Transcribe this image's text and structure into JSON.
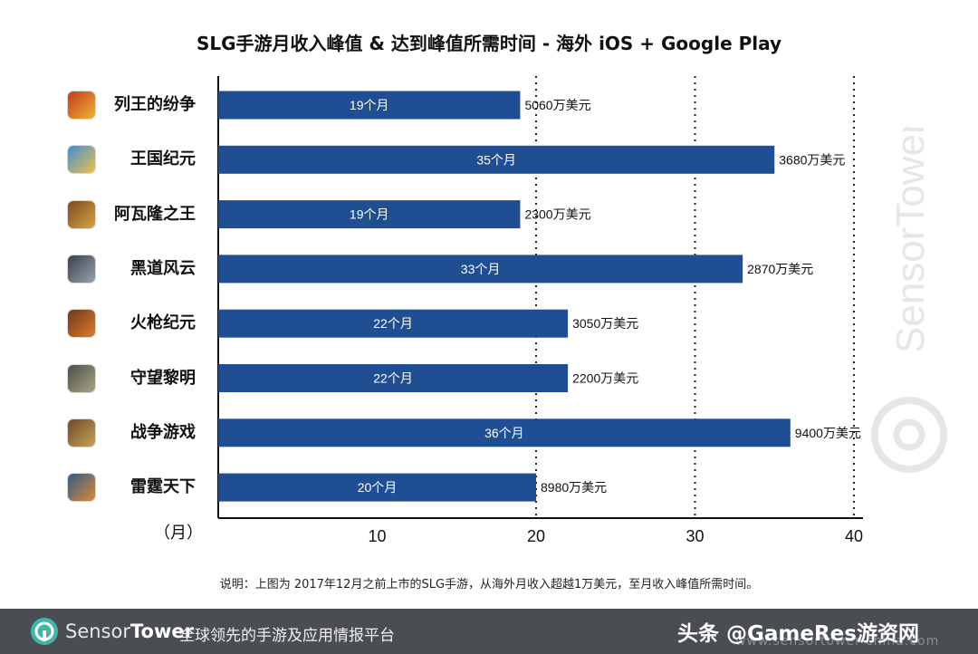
{
  "colors": {
    "bar": "#1f4e93",
    "axis": "#111111",
    "grid": "#222222",
    "footer_bg": "#4a4d52",
    "brand": "#3fb6a8"
  },
  "chart_data": {
    "type": "bar",
    "orientation": "horizontal",
    "title": "SLG手游月收入峰值 & 达到峰值所需时间 - 海外 iOS + Google Play",
    "categories": [
      "列王的纷争",
      "王国纪元",
      "阿瓦隆之王",
      "黑道风云",
      "火枪纪元",
      "守望黎明",
      "战争游戏",
      "雷霆天下"
    ],
    "values": [
      19,
      35,
      19,
      33,
      22,
      22,
      36,
      20
    ],
    "bar_labels": [
      "19个月",
      "35个月",
      "19个月",
      "33个月",
      "22个月",
      "22个月",
      "36个月",
      "20个月"
    ],
    "revenue_labels": [
      "5060万美元",
      "3680万美元",
      "2300万美元",
      "2870万美元",
      "3050万美元",
      "2200万美元",
      "9400万美元",
      "8980万美元"
    ],
    "xlim": [
      0,
      40
    ],
    "xticks": [
      10,
      20,
      30,
      40
    ],
    "xtick_labels": [
      "10",
      "20",
      "30",
      "40"
    ],
    "unit_label": "（月）",
    "grid": "vertical dotted at 20, 30, 40"
  },
  "app_icons": [
    "castle-clash-icon",
    "kingdom-icon",
    "avalon-icon",
    "mafia-city-icon",
    "gun-era-icon",
    "dawn-icon",
    "game-of-war-icon",
    "thunder-icon"
  ],
  "watermark": {
    "text": "SensorTower"
  },
  "note": "说明：上图为 2017年12月之前上市的SLG手游，从海外月收入超越1万美元，至月收入峰值所需时间。",
  "footer": {
    "logo_sensor": "Sensor",
    "logo_tower": "Tower",
    "slogan": "全球领先的手游及应用情报平台",
    "url": "www.sensortower-china.com",
    "credit": "头条 @GameRes游资网"
  }
}
